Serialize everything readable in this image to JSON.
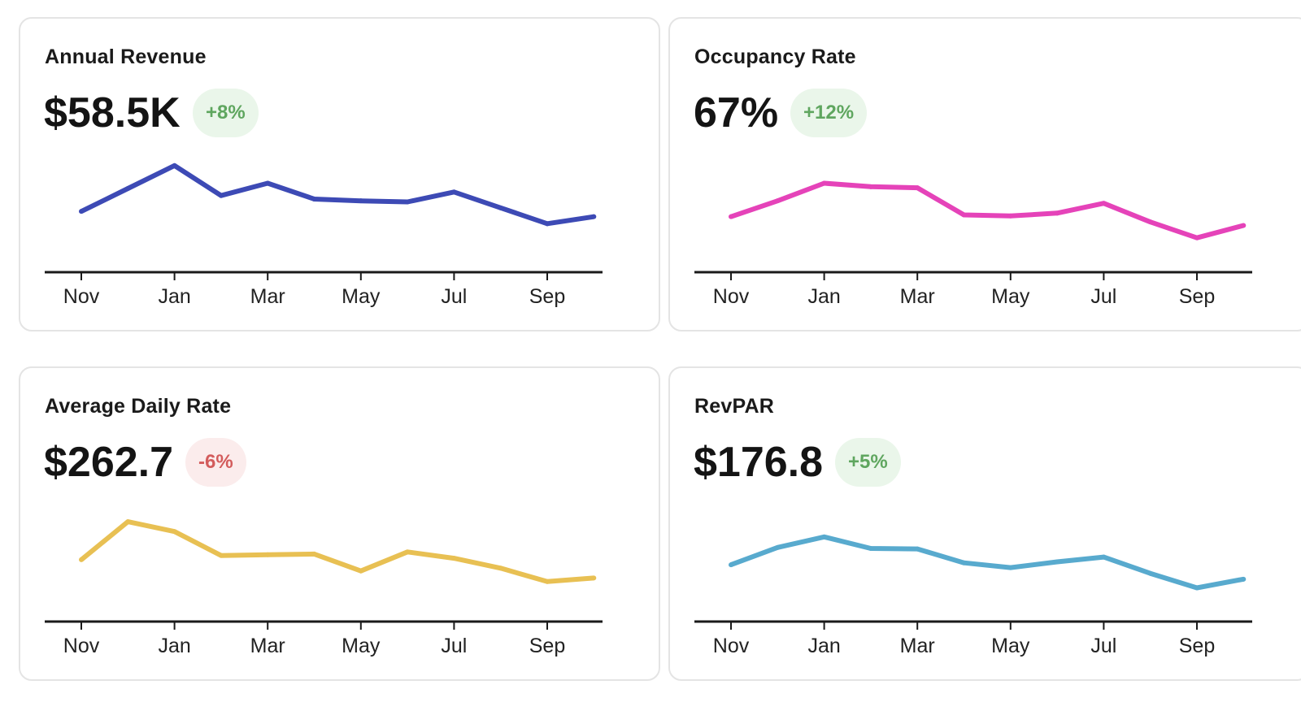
{
  "cards": [
    {
      "title": "Annual Revenue",
      "value": "$58.5K",
      "change": "+8%",
      "trend": "up",
      "color": "#3d4ab5",
      "chart_data": {
        "type": "line",
        "x": [
          "Nov",
          "Dec",
          "Jan",
          "Feb",
          "Mar",
          "Apr",
          "May",
          "Jun",
          "Jul",
          "Aug",
          "Sep",
          "Oct"
        ],
        "tick_labels": [
          "Nov",
          "Jan",
          "Mar",
          "May",
          "Jul",
          "Sep"
        ],
        "values": [
          4.45,
          5.1,
          5.75,
          4.9,
          5.25,
          4.8,
          4.75,
          4.72,
          5.0,
          4.55,
          4.1,
          4.3
        ],
        "ylim": [
          3,
          6
        ]
      }
    },
    {
      "title": "Occupancy Rate",
      "value": "67%",
      "change": "+12%",
      "trend": "up",
      "color": "#e543b9",
      "chart_data": {
        "type": "line",
        "x": [
          "Nov",
          "Dec",
          "Jan",
          "Feb",
          "Mar",
          "Apr",
          "May",
          "Jun",
          "Jul",
          "Aug",
          "Sep",
          "Oct"
        ],
        "tick_labels": [
          "Nov",
          "Jan",
          "Mar",
          "May",
          "Jul",
          "Sep"
        ],
        "values": [
          63,
          67.5,
          72.5,
          71.5,
          71.2,
          63.5,
          63.2,
          64,
          66.8,
          61.5,
          57,
          60.5
        ],
        "ylim": [
          50,
          80
        ]
      }
    },
    {
      "title": "Average Daily Rate",
      "value": "$262.7",
      "change": "-6%",
      "trend": "down",
      "color": "#e8c053",
      "chart_data": {
        "type": "line",
        "x": [
          "Nov",
          "Dec",
          "Jan",
          "Feb",
          "Mar",
          "Apr",
          "May",
          "Jun",
          "Jul",
          "Aug",
          "Sep",
          "Oct"
        ],
        "tick_labels": [
          "Nov",
          "Jan",
          "Mar",
          "May",
          "Jul",
          "Sep"
        ],
        "values": [
          262,
          289,
          282,
          265,
          265.5,
          266,
          254,
          267.5,
          263,
          256,
          246.5,
          249
        ],
        "ylim": [
          225,
          300
        ]
      }
    },
    {
      "title": "RevPAR",
      "value": "$176.8",
      "change": "+5%",
      "trend": "up",
      "color": "#58aace",
      "chart_data": {
        "type": "line",
        "x": [
          "Nov",
          "Dec",
          "Jan",
          "Feb",
          "Mar",
          "Apr",
          "May",
          "Jun",
          "Jul",
          "Aug",
          "Sep",
          "Oct"
        ],
        "tick_labels": [
          "Nov",
          "Jan",
          "Mar",
          "May",
          "Jul",
          "Sep"
        ],
        "values": [
          169,
          187,
          198,
          186,
          185.5,
          171,
          166,
          172,
          177,
          160,
          145,
          154
        ],
        "ylim": [
          120,
          230
        ]
      }
    }
  ]
}
